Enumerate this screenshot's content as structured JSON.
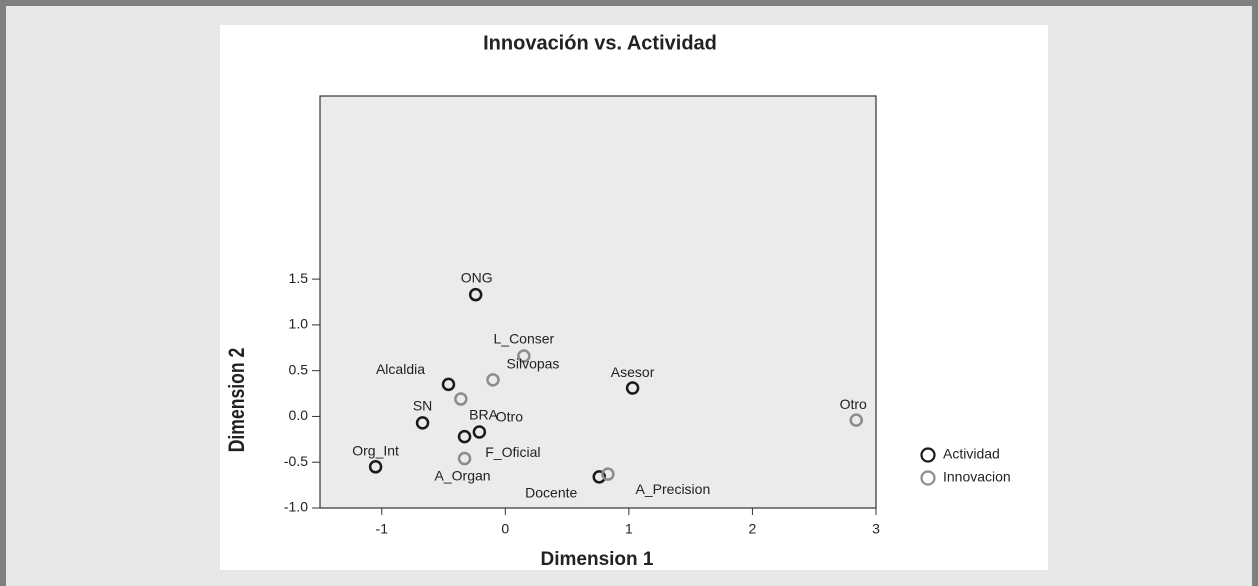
{
  "chart_data": {
    "type": "scatter",
    "title": "Innovación vs. Actividad",
    "x_label": "Dimension 1",
    "y_label": "Dimension 2",
    "xlim": [
      -1.5,
      3
    ],
    "ylim": [
      -1,
      3.5
    ],
    "xticks": [
      -1,
      0,
      1,
      2,
      3
    ],
    "yticks": [
      {
        "value": 1.5,
        "label": "1.5"
      },
      {
        "value": 1,
        "label": "1.0"
      },
      {
        "value": 0.5,
        "label": "0.5"
      },
      {
        "value": 0,
        "label": "0.0"
      },
      {
        "value": -0.5,
        "label": "-0.5"
      },
      {
        "value": -1,
        "label": "-1.0"
      }
    ],
    "legend": "right",
    "series": [
      {
        "name": "Actividad",
        "color": "#1a1a1a",
        "labels": [
          "ONG",
          "Alcaldia",
          "Asesor",
          "SN",
          "BRA",
          "Otro",
          "Org_Int",
          "Docente"
        ],
        "x": [
          -0.24,
          -0.46,
          1.03,
          -0.67,
          -0.33,
          -0.21,
          -1.05,
          0.76
        ],
        "values": [
          1.33,
          0.35,
          0.31,
          -0.07,
          -0.22,
          -0.17,
          -0.55,
          -0.66
        ]
      },
      {
        "name": "Innovacion",
        "color": "#8c8c8c",
        "labels": [
          "L_Conser",
          "Silvopas",
          "F_Oficial",
          "A_Organ",
          "A_Precision",
          "Otro"
        ],
        "x": [
          0.15,
          -0.1,
          -0.36,
          -0.33,
          0.83,
          2.84
        ],
        "values": [
          0.66,
          0.4,
          0.19,
          -0.46,
          -0.63,
          -0.04
        ]
      }
    ]
  }
}
